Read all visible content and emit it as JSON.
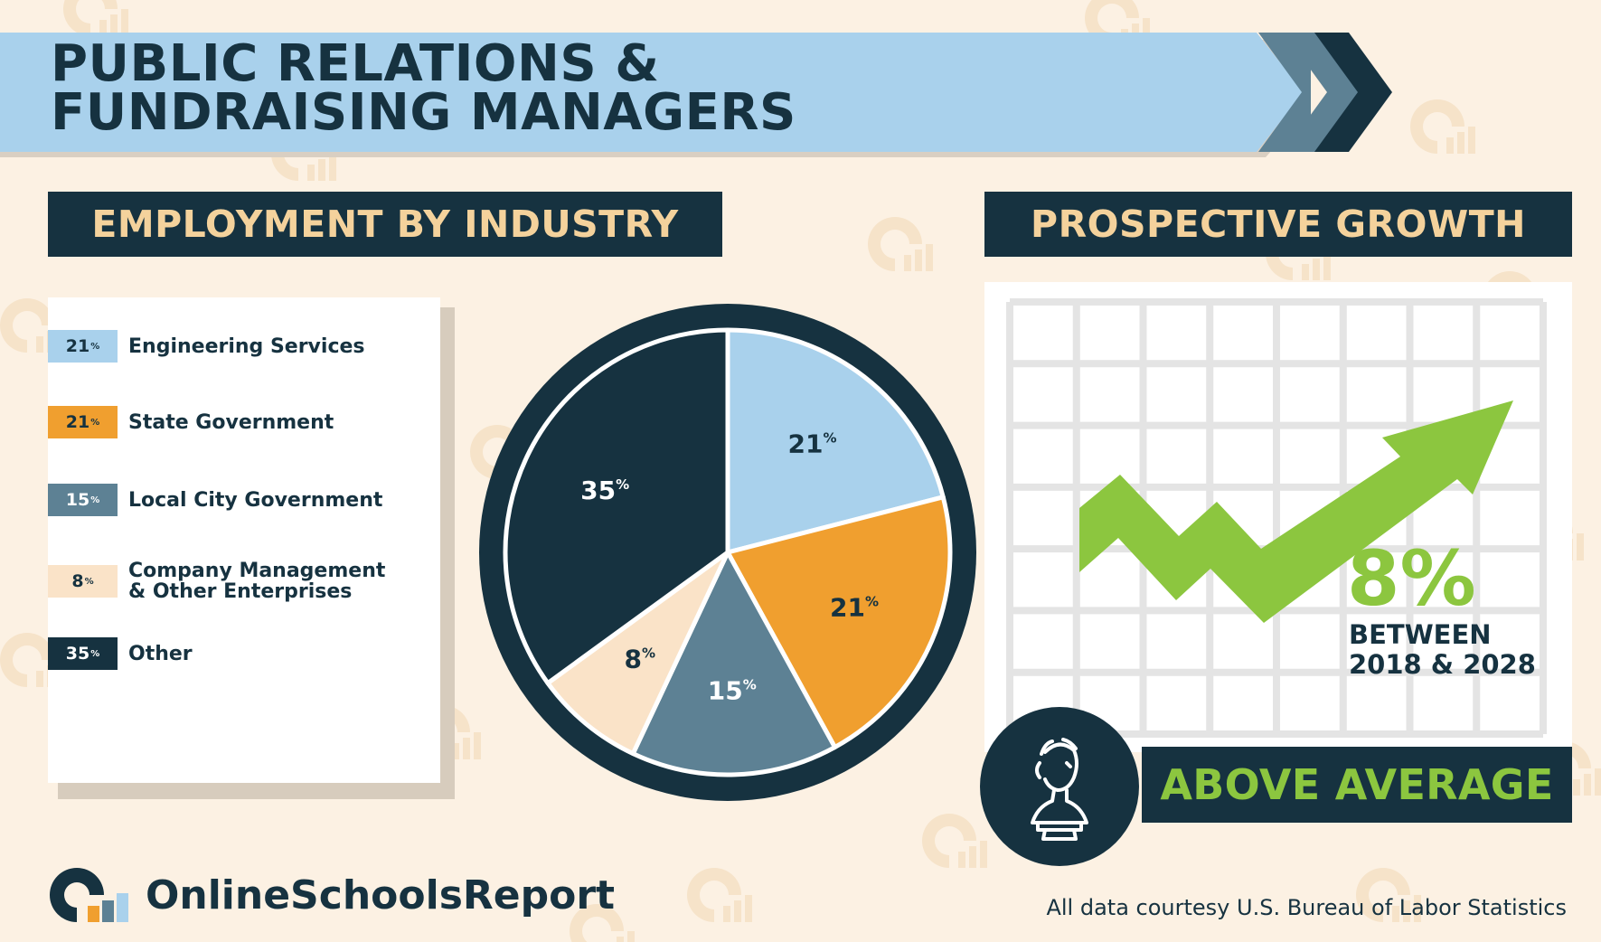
{
  "header": {
    "title_line1": "PUBLIC RELATIONS &",
    "title_line2": "FUNDRAISING MANAGERS"
  },
  "sections": {
    "employment_heading": "EMPLOYMENT BY INDUSTRY",
    "growth_heading": "PROSPECTIVE GROWTH"
  },
  "chart_data": {
    "type": "pie",
    "title": "EMPLOYMENT BY INDUSTRY",
    "categories": [
      "Engineering Services",
      "State Government",
      "Local City Government",
      "Company Management & Other Enterprises",
      "Other"
    ],
    "values": [
      21,
      21,
      15,
      8,
      35
    ],
    "unit": "%",
    "colors": [
      "#a9d1ec",
      "#f09f2f",
      "#5d8194",
      "#fae3c8",
      "#163240"
    ],
    "legend": [
      {
        "value": "21",
        "label": "Engineering Services"
      },
      {
        "value": "21",
        "label": "State Government"
      },
      {
        "value": "15",
        "label": "Local City Government"
      },
      {
        "value": "8",
        "label": "Company Management\n& Other Enterprises"
      },
      {
        "value": "35",
        "label": "Other"
      }
    ]
  },
  "growth": {
    "value": "8%",
    "period": "BETWEEN\n2018 & 2028",
    "outlook": "ABOVE AVERAGE",
    "arrow_color": "#8cc63f",
    "icon": "classical-bust-icon"
  },
  "footer": {
    "brand": "OnlineSchoolsReport",
    "source": "All data courtesy U.S. Bureau of Labor Statistics"
  },
  "colors": {
    "navy": "#163240",
    "light_blue": "#a9d1ec",
    "orange": "#f09f2f",
    "slate": "#5d8194",
    "cream": "#fae3c8",
    "green": "#8cc63f",
    "gold_text": "#f4d29c",
    "background": "#fcf1e3"
  }
}
